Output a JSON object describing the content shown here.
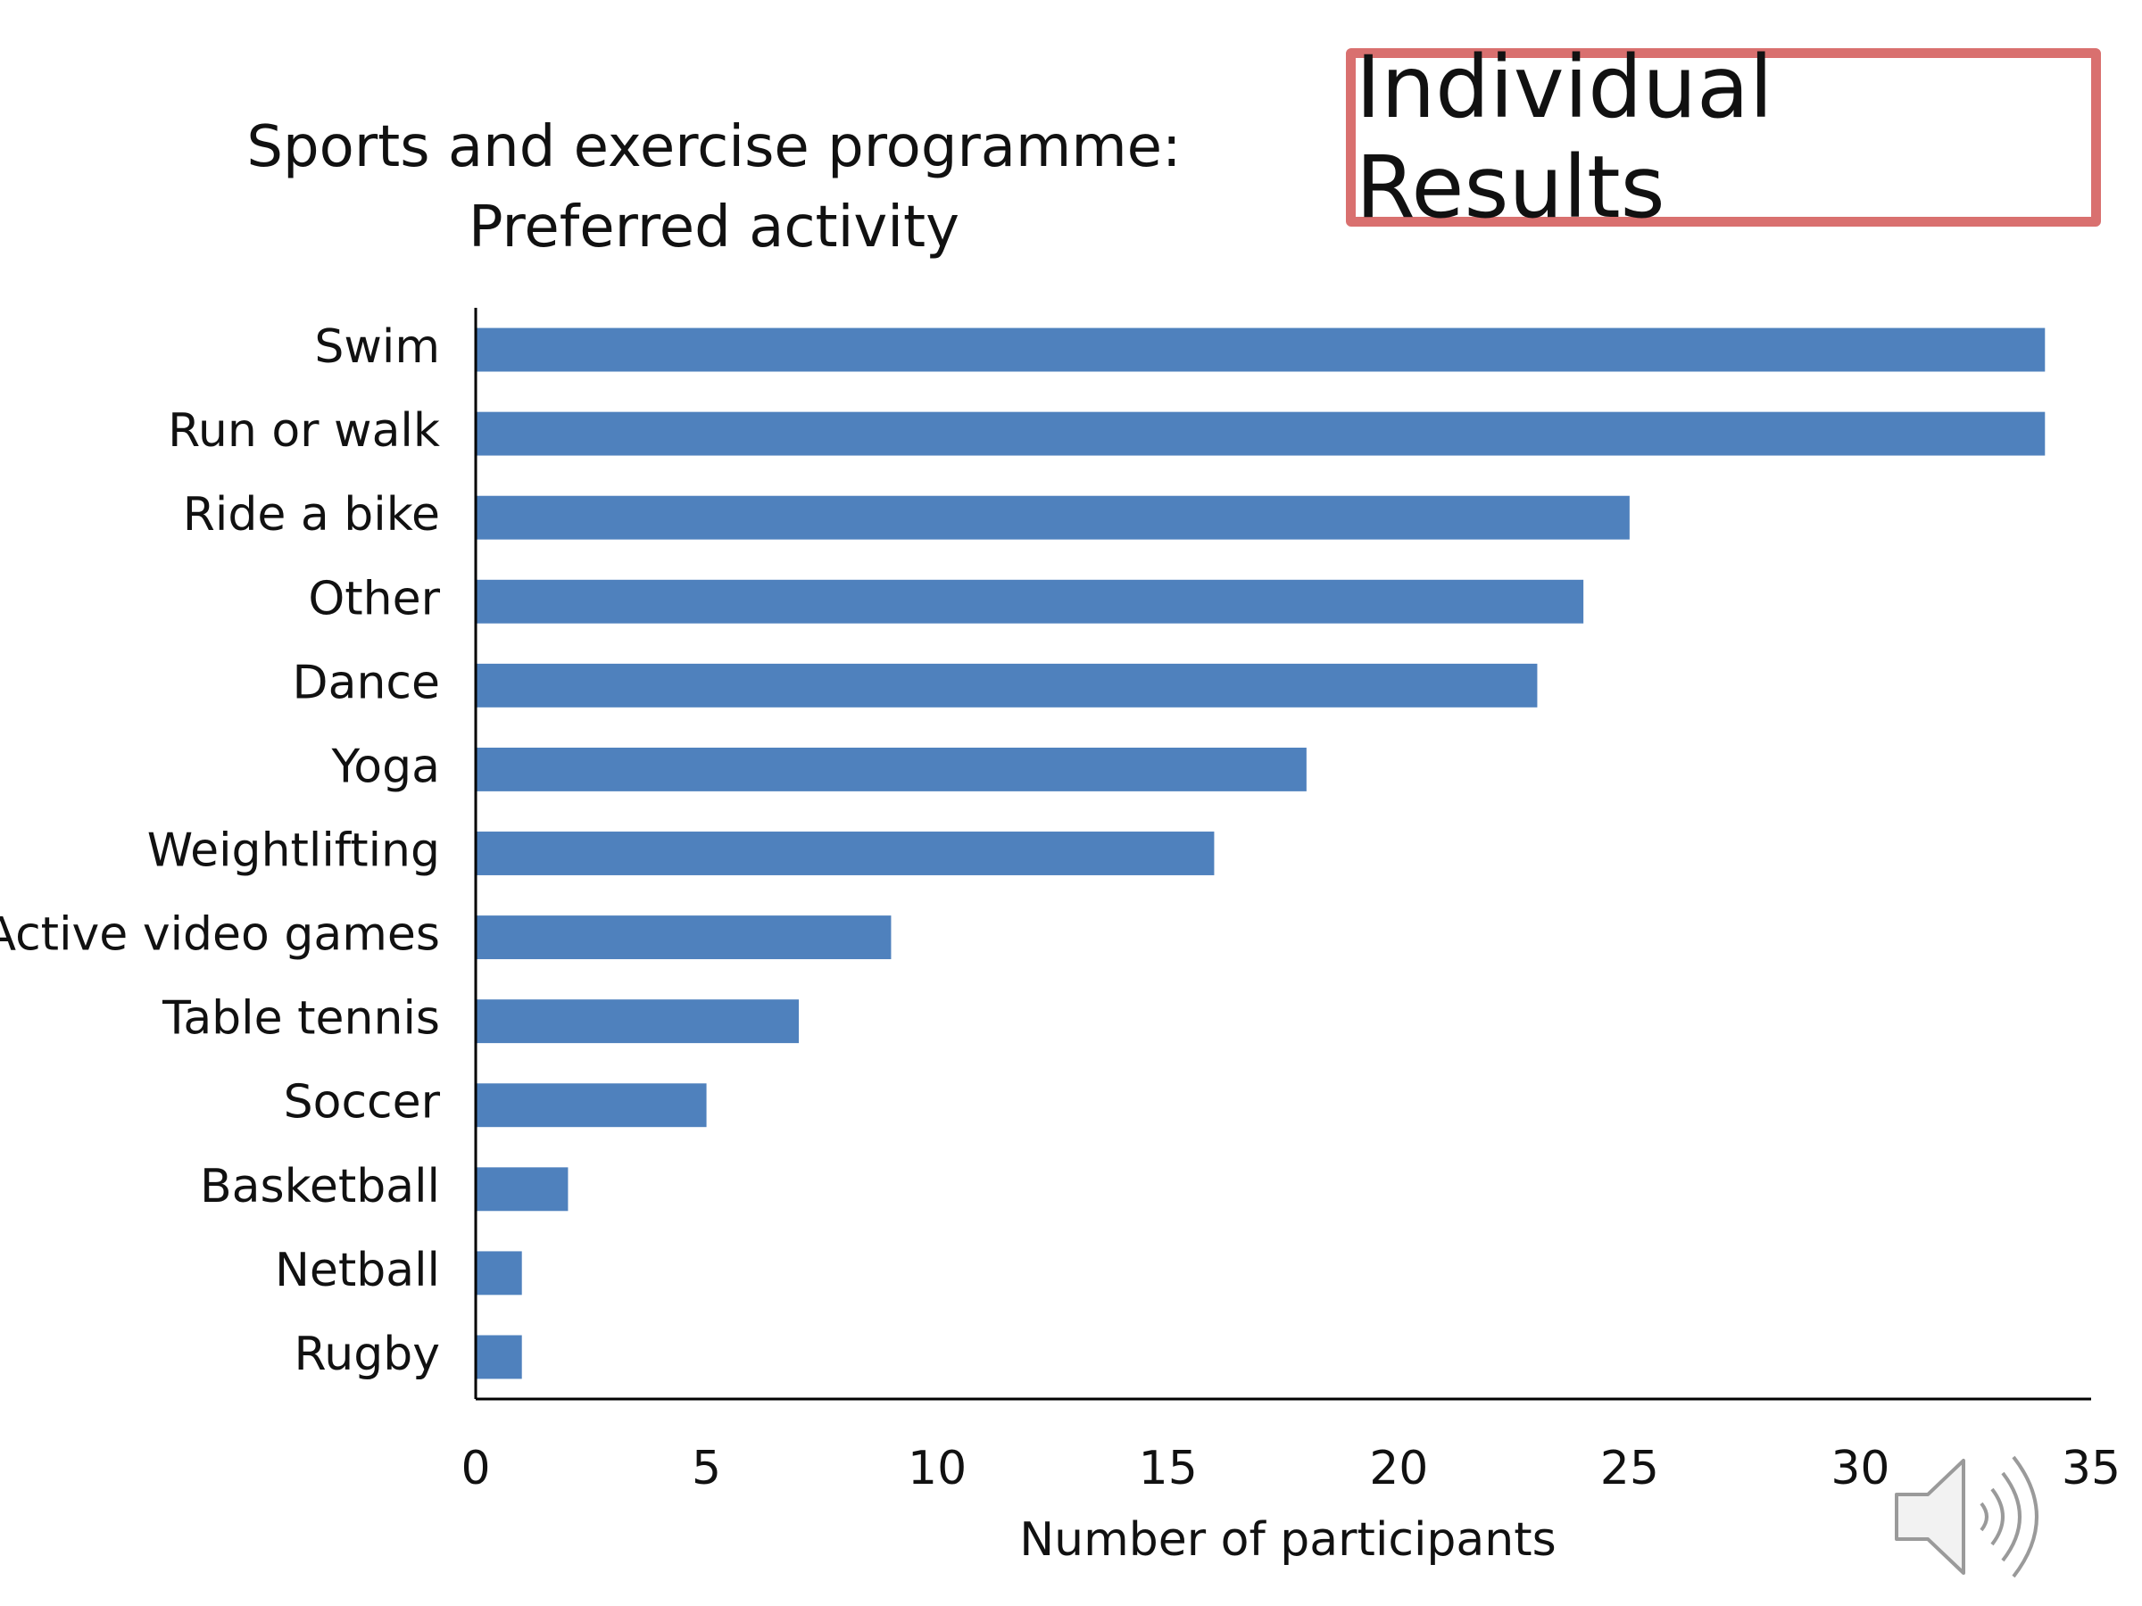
{
  "header": {
    "title_line1": "Sports and exercise programme:",
    "title_line2": "Preferred activity",
    "badge_label": "Individual Results"
  },
  "colors": {
    "bar": "#4f81bd",
    "badge_border": "#d9706f",
    "axis": "#000000"
  },
  "icons": {
    "speaker": "speaker-icon"
  },
  "chart_data": {
    "type": "bar",
    "orientation": "horizontal",
    "title": "Sports and exercise programme: Preferred activity",
    "xlabel": "Number of participants",
    "ylabel": "",
    "categories": [
      "Swim",
      "Run or walk",
      "Ride a bike",
      "Other",
      "Dance",
      "Yoga",
      "Weightlifting",
      "Active video games",
      "Table tennis",
      "Soccer",
      "Basketball",
      "Netball",
      "Rugby"
    ],
    "values": [
      34,
      34,
      25,
      24,
      23,
      18,
      16,
      9,
      7,
      5,
      2,
      1,
      1
    ],
    "xlim": [
      0,
      35
    ],
    "xticks": [
      0,
      5,
      10,
      15,
      20,
      25,
      30,
      35
    ],
    "grid": false,
    "legend": "none"
  }
}
